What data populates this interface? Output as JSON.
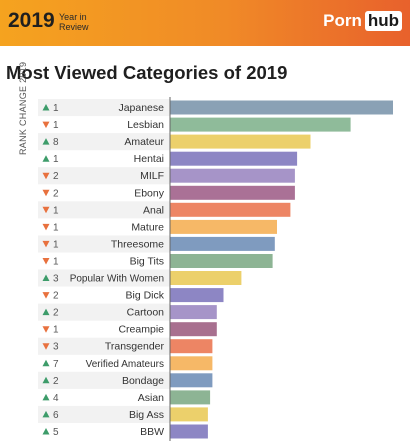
{
  "header": {
    "year": "2019",
    "year_in_review": "Year in Review",
    "brand_a": "Porn",
    "brand_b": "hub",
    "colors": {
      "banner_start": "#f5a31f",
      "banner_end": "#e8612c"
    }
  },
  "chart_data": {
    "type": "bar",
    "orientation": "horizontal",
    "title": "Most Viewed Categories of 2019",
    "ylabel": "RANK CHANGE 2019",
    "grid": false,
    "categories": [
      "Japanese",
      "Lesbian",
      "Amateur",
      "Hentai",
      "MILF",
      "Ebony",
      "Anal",
      "Mature",
      "Threesome",
      "Big Tits",
      "Popular With Women",
      "Big Dick",
      "Cartoon",
      "Creampie",
      "Transgender",
      "Verified Amateurs",
      "Bondage",
      "Asian",
      "Big Ass",
      "BBW"
    ],
    "values": [
      100,
      81,
      63,
      57,
      56,
      56,
      54,
      48,
      47,
      46,
      32,
      24,
      21,
      21,
      19,
      19,
      19,
      18,
      17,
      17
    ],
    "rank_change": [
      {
        "dir": "up",
        "n": "1"
      },
      {
        "dir": "down",
        "n": "1"
      },
      {
        "dir": "up",
        "n": "8"
      },
      {
        "dir": "up",
        "n": "1"
      },
      {
        "dir": "down",
        "n": "2"
      },
      {
        "dir": "down",
        "n": "2"
      },
      {
        "dir": "down",
        "n": "1"
      },
      {
        "dir": "down",
        "n": "1"
      },
      {
        "dir": "down",
        "n": "1"
      },
      {
        "dir": "down",
        "n": "1"
      },
      {
        "dir": "up",
        "n": "3"
      },
      {
        "dir": "down",
        "n": "2"
      },
      {
        "dir": "up",
        "n": "2"
      },
      {
        "dir": "down",
        "n": "1"
      },
      {
        "dir": "down",
        "n": "3"
      },
      {
        "dir": "up",
        "n": "7"
      },
      {
        "dir": "up",
        "n": "2"
      },
      {
        "dir": "up",
        "n": "4"
      },
      {
        "dir": "up",
        "n": "6"
      },
      {
        "dir": "up",
        "n": "5"
      }
    ],
    "colors": [
      "#8aa1b5",
      "#8fbb9a",
      "#ecd06b",
      "#8d86c4",
      "#a694c8",
      "#aa7196",
      "#ed8564",
      "#f6b867",
      "#7f9bbf",
      "#8db494",
      "#ecd06b",
      "#8d86c4",
      "#a694c8",
      "#a8708f",
      "#ed8564",
      "#f6b867",
      "#7f9bbf",
      "#8db494",
      "#ecd06b",
      "#8d86c4"
    ],
    "up_color": "#3d9c6a",
    "down_color": "#e8713e"
  }
}
